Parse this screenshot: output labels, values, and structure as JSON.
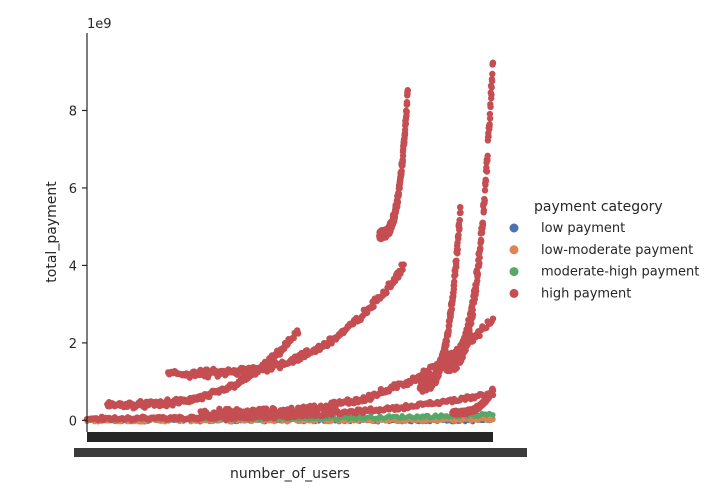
{
  "chart_data": {
    "type": "scatter",
    "xlabel": "number_of_users",
    "ylabel": "total_payment",
    "y_offset_label": "1e9",
    "ylim": [
      -0.3,
      10.0
    ],
    "y_ticks": [
      0,
      2,
      4,
      6,
      8
    ],
    "x_ticks_note": "dense overlapping categorical ticks (unreadable)",
    "grid": false,
    "legend": {
      "title": "payment category",
      "placement": "right"
    },
    "series": [
      {
        "name": "low payment",
        "color": "#4c72b0",
        "bands": [
          {
            "x0": 0.0,
            "x1": 1.0,
            "y0": 0.0,
            "y1": 0.0
          }
        ]
      },
      {
        "name": "low-moderate payment",
        "color": "#dd8452",
        "bands": [
          {
            "x0": 0.0,
            "x1": 1.0,
            "y0": 0.0,
            "y1": 0.03
          }
        ]
      },
      {
        "name": "moderate-high payment",
        "color": "#55a868",
        "bands": [
          {
            "x0": 0.0,
            "x1": 1.0,
            "y0": 0.04,
            "y1": 0.15
          }
        ]
      },
      {
        "name": "high payment",
        "color": "#c44e52",
        "bands": [
          {
            "x0": 0.0,
            "x1": 1.0,
            "y0": 0.05,
            "y1": 0.7
          },
          {
            "x0": 0.28,
            "x1": 1.0,
            "y0": 0.2,
            "y1": 2.6
          },
          {
            "x0": 0.05,
            "x1": 0.52,
            "y0": 0.4,
            "y1": 2.3
          },
          {
            "x0": 0.2,
            "x1": 0.78,
            "y0": 1.2,
            "y1": 4.0
          },
          {
            "x0": 0.72,
            "x1": 0.79,
            "y0": 4.8,
            "y1": 8.5
          },
          {
            "x0": 0.82,
            "x1": 0.92,
            "y0": 0.9,
            "y1": 5.5
          },
          {
            "x0": 0.88,
            "x1": 1.0,
            "y0": 1.5,
            "y1": 9.4
          },
          {
            "x0": 0.9,
            "x1": 1.0,
            "y0": 0.2,
            "y1": 0.8
          }
        ]
      }
    ]
  }
}
